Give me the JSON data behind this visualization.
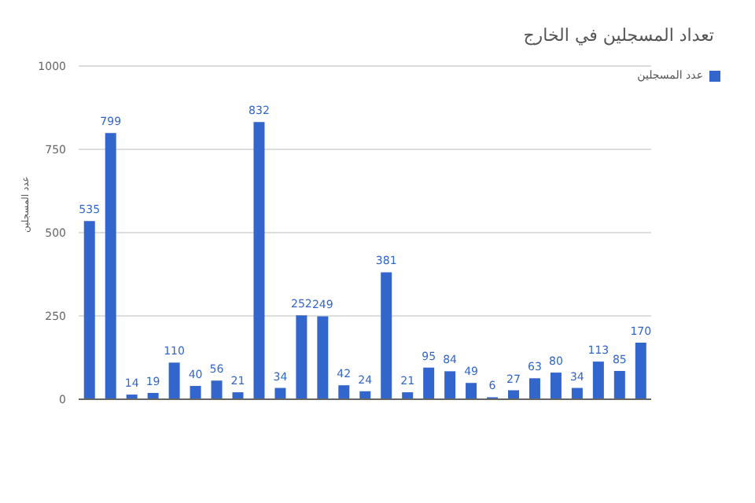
{
  "chart_data": {
    "type": "bar",
    "title": "تعداد المسجلين في الخارج",
    "ylabel": "عدد المسجلين",
    "categories": [
      null,
      null,
      null,
      null,
      null,
      null,
      null,
      null,
      null,
      null,
      null,
      null,
      null,
      null,
      null,
      null,
      null,
      null,
      null,
      null,
      null,
      null,
      null,
      null,
      null,
      null,
      null
    ],
    "series": [
      {
        "name": "عدد المسجلين",
        "color": "#3366cc",
        "values": [
          535,
          799,
          14,
          19,
          110,
          40,
          56,
          21,
          832,
          34,
          252,
          249,
          42,
          24,
          381,
          21,
          95,
          84,
          49,
          6,
          27,
          63,
          80,
          34,
          113,
          85,
          170
        ]
      }
    ],
    "ylim": [
      0,
      1000
    ],
    "yticks": [
      0,
      250,
      500,
      750,
      1000
    ],
    "grid": "y",
    "legend": "top right",
    "data_labels": true
  }
}
